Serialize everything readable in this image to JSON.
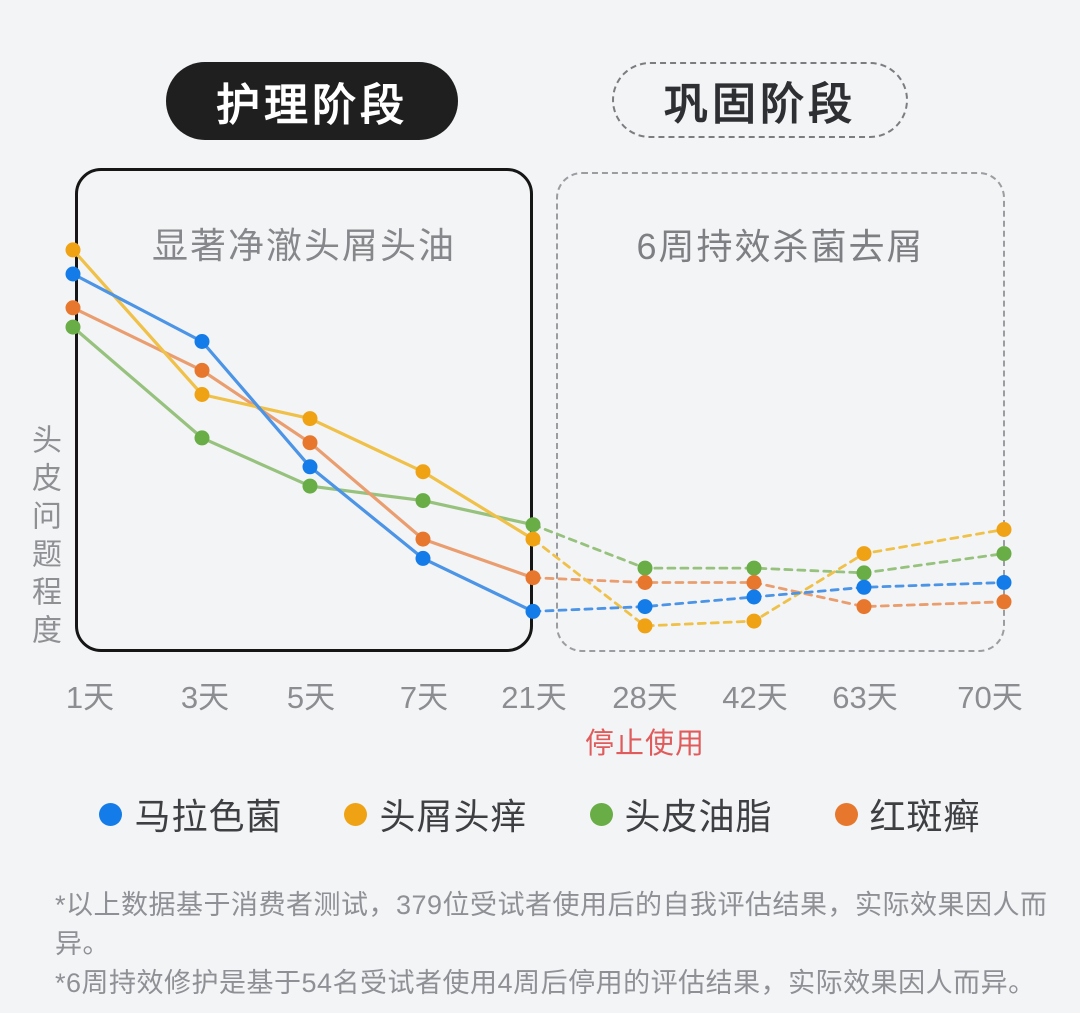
{
  "page": {
    "background": "#f3f4f6"
  },
  "phases": [
    {
      "badge": "护理阶段",
      "badge_style": "solid-black-pill",
      "box_title": "显著净澈头屑头油"
    },
    {
      "badge": "巩固阶段",
      "badge_style": "dashed-outline-pill",
      "box_title": "6周持效杀菌去屑"
    }
  ],
  "chart_data": {
    "type": "line",
    "ylabel": "头皮问题程度",
    "categories": [
      "1天",
      "3天",
      "5天",
      "7天",
      "21天",
      "28天",
      "42天",
      "63天",
      "70天"
    ],
    "ylim": [
      0,
      100
    ],
    "grid": false,
    "legend_position": "bottom",
    "solid_until_index": 4,
    "stop_note": {
      "text": "停止使用",
      "color": "#e05c5c",
      "at_category": "28天"
    },
    "series": [
      {
        "name": "马拉色菌",
        "color": "#147ce8",
        "line_color": "#4b94e6",
        "values": [
          78,
          64,
          38,
          19,
          8,
          9,
          11,
          13,
          14
        ]
      },
      {
        "name": "头屑头痒",
        "color": "#efa213",
        "line_color": "#f0c149",
        "values": [
          83,
          53,
          48,
          37,
          23,
          5,
          6,
          20,
          25
        ]
      },
      {
        "name": "头皮油脂",
        "color": "#68ad45",
        "line_color": "#97c27e",
        "values": [
          67,
          44,
          34,
          31,
          26,
          17,
          17,
          16,
          20
        ]
      },
      {
        "name": "红斑癣",
        "color": "#e7772d",
        "line_color": "#ea9e70",
        "values": [
          71,
          58,
          43,
          23,
          15,
          14,
          14,
          9,
          10
        ]
      }
    ]
  },
  "footnotes": [
    "*以上数据基于消费者测试，379位受试者使用后的自我评估结果，实际效果因人而异。",
    "*6周持效修护是基于54名受试者使用4周后停用的评估结果，实际效果因人而异。"
  ]
}
